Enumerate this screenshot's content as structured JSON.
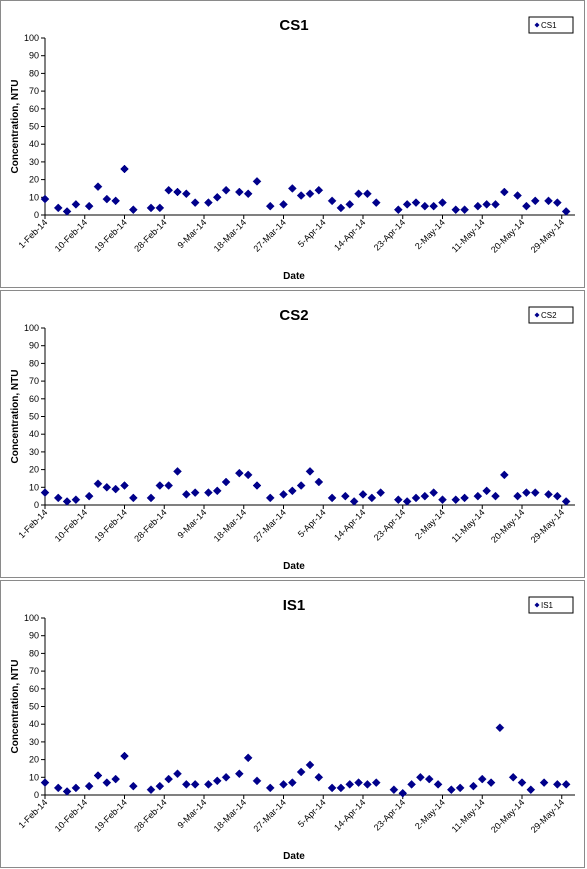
{
  "chart_data": [
    {
      "type": "scatter",
      "title": "CS1",
      "xlabel": "Date",
      "ylabel": "Concentration, NTU",
      "ylim": [
        0,
        100
      ],
      "yticks": [
        0,
        10,
        20,
        30,
        40,
        50,
        60,
        70,
        80,
        90,
        100
      ],
      "xlim": [
        "2014-02-01",
        "2014-06-01"
      ],
      "xticks": [
        "1-Feb-14",
        "10-Feb-14",
        "19-Feb-14",
        "28-Feb-14",
        "9-Mar-14",
        "18-Mar-14",
        "27-Mar-14",
        "5-Apr-14",
        "14-Apr-14",
        "23-Apr-14",
        "2-May-14",
        "11-May-14",
        "20-May-14",
        "29-May-14"
      ],
      "legend_position": "top-right",
      "marker": "diamond",
      "series": [
        {
          "name": "CS1",
          "color": "#00008b",
          "points": [
            {
              "x": "2014-02-01",
              "y": 9
            },
            {
              "x": "2014-02-04",
              "y": 4
            },
            {
              "x": "2014-02-06",
              "y": 2
            },
            {
              "x": "2014-02-08",
              "y": 6
            },
            {
              "x": "2014-02-11",
              "y": 5
            },
            {
              "x": "2014-02-13",
              "y": 16
            },
            {
              "x": "2014-02-15",
              "y": 9
            },
            {
              "x": "2014-02-17",
              "y": 8
            },
            {
              "x": "2014-02-19",
              "y": 26
            },
            {
              "x": "2014-02-21",
              "y": 3
            },
            {
              "x": "2014-02-25",
              "y": 4
            },
            {
              "x": "2014-02-27",
              "y": 4
            },
            {
              "x": "2014-03-01",
              "y": 14
            },
            {
              "x": "2014-03-03",
              "y": 13
            },
            {
              "x": "2014-03-05",
              "y": 12
            },
            {
              "x": "2014-03-07",
              "y": 7
            },
            {
              "x": "2014-03-10",
              "y": 7
            },
            {
              "x": "2014-03-12",
              "y": 10
            },
            {
              "x": "2014-03-14",
              "y": 14
            },
            {
              "x": "2014-03-17",
              "y": 13
            },
            {
              "x": "2014-03-19",
              "y": 12
            },
            {
              "x": "2014-03-21",
              "y": 19
            },
            {
              "x": "2014-03-24",
              "y": 5
            },
            {
              "x": "2014-03-27",
              "y": 6
            },
            {
              "x": "2014-03-29",
              "y": 15
            },
            {
              "x": "2014-03-31",
              "y": 11
            },
            {
              "x": "2014-04-02",
              "y": 12
            },
            {
              "x": "2014-04-04",
              "y": 14
            },
            {
              "x": "2014-04-07",
              "y": 8
            },
            {
              "x": "2014-04-09",
              "y": 4
            },
            {
              "x": "2014-04-11",
              "y": 6
            },
            {
              "x": "2014-04-13",
              "y": 12
            },
            {
              "x": "2014-04-15",
              "y": 12
            },
            {
              "x": "2014-04-17",
              "y": 7
            },
            {
              "x": "2014-04-22",
              "y": 3
            },
            {
              "x": "2014-04-24",
              "y": 6
            },
            {
              "x": "2014-04-26",
              "y": 7
            },
            {
              "x": "2014-04-28",
              "y": 5
            },
            {
              "x": "2014-04-30",
              "y": 5
            },
            {
              "x": "2014-05-02",
              "y": 7
            },
            {
              "x": "2014-05-05",
              "y": 3
            },
            {
              "x": "2014-05-07",
              "y": 3
            },
            {
              "x": "2014-05-10",
              "y": 5
            },
            {
              "x": "2014-05-12",
              "y": 6
            },
            {
              "x": "2014-05-14",
              "y": 6
            },
            {
              "x": "2014-05-16",
              "y": 13
            },
            {
              "x": "2014-05-19",
              "y": 11
            },
            {
              "x": "2014-05-21",
              "y": 5
            },
            {
              "x": "2014-05-23",
              "y": 8
            },
            {
              "x": "2014-05-26",
              "y": 8
            },
            {
              "x": "2014-05-28",
              "y": 7
            },
            {
              "x": "2014-05-30",
              "y": 2
            }
          ]
        }
      ]
    },
    {
      "type": "scatter",
      "title": "CS2",
      "xlabel": "Date",
      "ylabel": "Concentration, NTU",
      "ylim": [
        0,
        100
      ],
      "yticks": [
        0,
        10,
        20,
        30,
        40,
        50,
        60,
        70,
        80,
        90,
        100
      ],
      "xlim": [
        "2014-02-01",
        "2014-06-01"
      ],
      "xticks": [
        "1-Feb-14",
        "10-Feb-14",
        "19-Feb-14",
        "28-Feb-14",
        "9-Mar-14",
        "18-Mar-14",
        "27-Mar-14",
        "5-Apr-14",
        "14-Apr-14",
        "23-Apr-14",
        "2-May-14",
        "11-May-14",
        "20-May-14",
        "29-May-14"
      ],
      "legend_position": "top-right",
      "marker": "diamond",
      "series": [
        {
          "name": "CS2",
          "color": "#00008b",
          "points": [
            {
              "x": "2014-02-01",
              "y": 7
            },
            {
              "x": "2014-02-04",
              "y": 4
            },
            {
              "x": "2014-02-06",
              "y": 2
            },
            {
              "x": "2014-02-08",
              "y": 3
            },
            {
              "x": "2014-02-11",
              "y": 5
            },
            {
              "x": "2014-02-13",
              "y": 12
            },
            {
              "x": "2014-02-15",
              "y": 10
            },
            {
              "x": "2014-02-17",
              "y": 9
            },
            {
              "x": "2014-02-19",
              "y": 11
            },
            {
              "x": "2014-02-21",
              "y": 4
            },
            {
              "x": "2014-02-25",
              "y": 4
            },
            {
              "x": "2014-02-27",
              "y": 11
            },
            {
              "x": "2014-03-01",
              "y": 11
            },
            {
              "x": "2014-03-03",
              "y": 19
            },
            {
              "x": "2014-03-05",
              "y": 6
            },
            {
              "x": "2014-03-07",
              "y": 7
            },
            {
              "x": "2014-03-10",
              "y": 7
            },
            {
              "x": "2014-03-12",
              "y": 8
            },
            {
              "x": "2014-03-14",
              "y": 13
            },
            {
              "x": "2014-03-17",
              "y": 18
            },
            {
              "x": "2014-03-19",
              "y": 17
            },
            {
              "x": "2014-03-21",
              "y": 11
            },
            {
              "x": "2014-03-24",
              "y": 4
            },
            {
              "x": "2014-03-27",
              "y": 6
            },
            {
              "x": "2014-03-29",
              "y": 8
            },
            {
              "x": "2014-03-31",
              "y": 11
            },
            {
              "x": "2014-04-02",
              "y": 19
            },
            {
              "x": "2014-04-04",
              "y": 13
            },
            {
              "x": "2014-04-07",
              "y": 4
            },
            {
              "x": "2014-04-10",
              "y": 5
            },
            {
              "x": "2014-04-12",
              "y": 2
            },
            {
              "x": "2014-04-14",
              "y": 6
            },
            {
              "x": "2014-04-16",
              "y": 4
            },
            {
              "x": "2014-04-18",
              "y": 7
            },
            {
              "x": "2014-04-22",
              "y": 3
            },
            {
              "x": "2014-04-24",
              "y": 2
            },
            {
              "x": "2014-04-26",
              "y": 4
            },
            {
              "x": "2014-04-28",
              "y": 5
            },
            {
              "x": "2014-04-30",
              "y": 7
            },
            {
              "x": "2014-05-02",
              "y": 3
            },
            {
              "x": "2014-05-05",
              "y": 3
            },
            {
              "x": "2014-05-07",
              "y": 4
            },
            {
              "x": "2014-05-10",
              "y": 5
            },
            {
              "x": "2014-05-12",
              "y": 8
            },
            {
              "x": "2014-05-14",
              "y": 5
            },
            {
              "x": "2014-05-16",
              "y": 17
            },
            {
              "x": "2014-05-19",
              "y": 5
            },
            {
              "x": "2014-05-21",
              "y": 7
            },
            {
              "x": "2014-05-23",
              "y": 7
            },
            {
              "x": "2014-05-26",
              "y": 6
            },
            {
              "x": "2014-05-28",
              "y": 5
            },
            {
              "x": "2014-05-30",
              "y": 2
            }
          ]
        }
      ]
    },
    {
      "type": "scatter",
      "title": "IS1",
      "xlabel": "Date",
      "ylabel": "Concentration, NTU",
      "ylim": [
        0,
        100
      ],
      "yticks": [
        0,
        10,
        20,
        30,
        40,
        50,
        60,
        70,
        80,
        90,
        100
      ],
      "xlim": [
        "2014-02-01",
        "2014-06-01"
      ],
      "xticks": [
        "1-Feb-14",
        "10-Feb-14",
        "19-Feb-14",
        "28-Feb-14",
        "9-Mar-14",
        "18-Mar-14",
        "27-Mar-14",
        "5-Apr-14",
        "14-Apr-14",
        "23-Apr-14",
        "2-May-14",
        "11-May-14",
        "20-May-14",
        "29-May-14"
      ],
      "legend_position": "top-right",
      "marker": "diamond",
      "series": [
        {
          "name": "IS1",
          "color": "#00008b",
          "points": [
            {
              "x": "2014-02-01",
              "y": 7
            },
            {
              "x": "2014-02-04",
              "y": 4
            },
            {
              "x": "2014-02-06",
              "y": 2
            },
            {
              "x": "2014-02-08",
              "y": 4
            },
            {
              "x": "2014-02-11",
              "y": 5
            },
            {
              "x": "2014-02-13",
              "y": 11
            },
            {
              "x": "2014-02-15",
              "y": 7
            },
            {
              "x": "2014-02-17",
              "y": 9
            },
            {
              "x": "2014-02-19",
              "y": 22
            },
            {
              "x": "2014-02-21",
              "y": 5
            },
            {
              "x": "2014-02-25",
              "y": 3
            },
            {
              "x": "2014-02-27",
              "y": 5
            },
            {
              "x": "2014-03-01",
              "y": 9
            },
            {
              "x": "2014-03-03",
              "y": 12
            },
            {
              "x": "2014-03-05",
              "y": 6
            },
            {
              "x": "2014-03-07",
              "y": 6
            },
            {
              "x": "2014-03-10",
              "y": 6
            },
            {
              "x": "2014-03-12",
              "y": 8
            },
            {
              "x": "2014-03-14",
              "y": 10
            },
            {
              "x": "2014-03-17",
              "y": 12
            },
            {
              "x": "2014-03-19",
              "y": 21
            },
            {
              "x": "2014-03-21",
              "y": 8
            },
            {
              "x": "2014-03-24",
              "y": 4
            },
            {
              "x": "2014-03-27",
              "y": 6
            },
            {
              "x": "2014-03-29",
              "y": 7
            },
            {
              "x": "2014-03-31",
              "y": 13
            },
            {
              "x": "2014-04-02",
              "y": 17
            },
            {
              "x": "2014-04-04",
              "y": 10
            },
            {
              "x": "2014-04-07",
              "y": 4
            },
            {
              "x": "2014-04-09",
              "y": 4
            },
            {
              "x": "2014-04-11",
              "y": 6
            },
            {
              "x": "2014-04-13",
              "y": 7
            },
            {
              "x": "2014-04-15",
              "y": 6
            },
            {
              "x": "2014-04-17",
              "y": 7
            },
            {
              "x": "2014-04-21",
              "y": 3
            },
            {
              "x": "2014-04-23",
              "y": 1
            },
            {
              "x": "2014-04-25",
              "y": 6
            },
            {
              "x": "2014-04-27",
              "y": 10
            },
            {
              "x": "2014-04-29",
              "y": 9
            },
            {
              "x": "2014-05-01",
              "y": 6
            },
            {
              "x": "2014-05-04",
              "y": 3
            },
            {
              "x": "2014-05-06",
              "y": 4
            },
            {
              "x": "2014-05-09",
              "y": 5
            },
            {
              "x": "2014-05-11",
              "y": 9
            },
            {
              "x": "2014-05-13",
              "y": 7
            },
            {
              "x": "2014-05-15",
              "y": 38
            },
            {
              "x": "2014-05-18",
              "y": 10
            },
            {
              "x": "2014-05-20",
              "y": 7
            },
            {
              "x": "2014-05-22",
              "y": 3
            },
            {
              "x": "2014-05-25",
              "y": 7
            },
            {
              "x": "2014-05-28",
              "y": 6
            },
            {
              "x": "2014-05-30",
              "y": 6
            }
          ]
        }
      ]
    }
  ]
}
